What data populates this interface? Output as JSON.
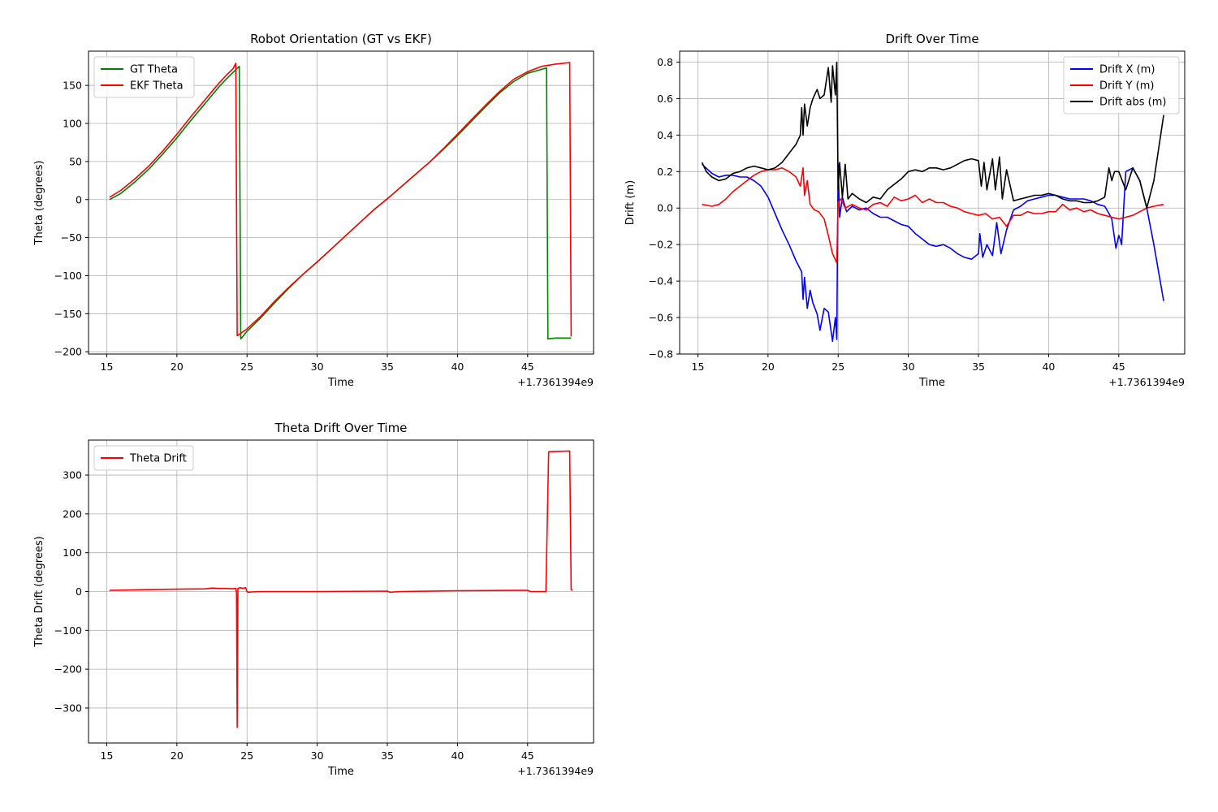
{
  "chart_data": [
    {
      "type": "line",
      "title": "Robot Orientation (GT vs EKF)",
      "xlabel": "Time",
      "ylabel": "Theta (degrees)",
      "offset_text": "+1.7361394e9",
      "xlim": [
        13.7,
        49.7
      ],
      "ylim": [
        -203,
        195
      ],
      "xticks": [
        15,
        20,
        25,
        30,
        35,
        40,
        45
      ],
      "yticks": [
        -200,
        -150,
        -100,
        -50,
        0,
        50,
        100,
        150
      ],
      "grid": true,
      "legend": "upper-left",
      "series": [
        {
          "name": "GT Theta",
          "color": "#008000",
          "x": [
            15.2,
            16,
            17,
            18,
            19,
            20,
            21,
            22,
            22.5,
            23,
            23.5,
            24,
            24.45,
            24.55,
            24.7,
            25,
            26,
            27,
            28,
            29,
            30,
            31,
            32,
            33,
            34,
            35,
            36,
            37,
            38,
            39,
            40,
            41,
            42,
            43,
            44,
            45,
            45.8,
            46.35,
            46.45,
            47,
            48.0,
            48.1
          ],
          "y": [
            0,
            8,
            23,
            40,
            60,
            81,
            104,
            126,
            137,
            148,
            158,
            167,
            175,
            -183,
            -180,
            -173,
            -155,
            -135,
            -116,
            -98,
            -82,
            -65,
            -48,
            -31,
            -14,
            1,
            17,
            33,
            49,
            66,
            84,
            103,
            122,
            140,
            155,
            166,
            170,
            173,
            -183,
            -182,
            -182,
            -182
          ]
        },
        {
          "name": "EKF Theta",
          "color": "#ff0000",
          "x": [
            15.2,
            16,
            17,
            18,
            19,
            20,
            21,
            22,
            22.5,
            23,
            23.5,
            24,
            24.2,
            24.3,
            24.6,
            25,
            26,
            27,
            28,
            29,
            30,
            31,
            32,
            33,
            34,
            35,
            36,
            37,
            38,
            39,
            40,
            41,
            42,
            43,
            44,
            45,
            46,
            47,
            48.0,
            48.1
          ],
          "y": [
            3,
            12,
            27,
            44,
            64,
            86,
            109,
            131,
            142,
            153,
            163,
            172,
            179,
            -179,
            -175,
            -170,
            -153,
            -133,
            -115,
            -98,
            -82,
            -65,
            -48,
            -31,
            -14,
            1,
            17,
            33,
            49,
            67,
            86,
            105,
            124,
            142,
            158,
            168,
            175,
            178,
            180,
            -180
          ]
        }
      ]
    },
    {
      "type": "line",
      "title": "Drift Over Time",
      "xlabel": "Time",
      "ylabel": "Drift (m)",
      "offset_text": "+1.7361394e9",
      "xlim": [
        13.7,
        49.7
      ],
      "ylim": [
        -0.8,
        0.86
      ],
      "xticks": [
        15,
        20,
        25,
        30,
        35,
        40,
        45
      ],
      "yticks": [
        -0.8,
        -0.6,
        -0.4,
        -0.2,
        0.0,
        0.2,
        0.4,
        0.6,
        0.8
      ],
      "grid": true,
      "legend": "upper-right",
      "series": [
        {
          "name": "Drift X (m)",
          "color": "#0000ff",
          "x": [
            15.3,
            16,
            16.5,
            17,
            17.5,
            18,
            18.5,
            19,
            19.5,
            20,
            20.5,
            21,
            21.5,
            22,
            22.4,
            22.5,
            22.6,
            22.8,
            23,
            23.2,
            23.5,
            23.7,
            24,
            24.3,
            24.6,
            24.8,
            24.9,
            25.0,
            25.1,
            25.3,
            25.6,
            26,
            26.5,
            27,
            27.5,
            28,
            28.5,
            29,
            29.5,
            30,
            30.5,
            31,
            31.5,
            32,
            32.5,
            33,
            33.5,
            34,
            34.5,
            35,
            35.1,
            35.3,
            35.6,
            36,
            36.3,
            36.6,
            37,
            37.5,
            38,
            38.5,
            39,
            39.5,
            40,
            40.5,
            41,
            41.5,
            42,
            42.5,
            43,
            43.5,
            44,
            44.3,
            44.5,
            44.8,
            45,
            45.1,
            45.2,
            45.5,
            46,
            46.5,
            47,
            47.5,
            48.2
          ],
          "y": [
            0.24,
            0.19,
            0.17,
            0.18,
            0.18,
            0.17,
            0.17,
            0.15,
            0.12,
            0.06,
            -0.03,
            -0.12,
            -0.2,
            -0.29,
            -0.35,
            -0.5,
            -0.38,
            -0.55,
            -0.45,
            -0.52,
            -0.58,
            -0.67,
            -0.55,
            -0.57,
            -0.73,
            -0.6,
            -0.72,
            0.24,
            -0.05,
            0.06,
            -0.02,
            0.01,
            -0.01,
            0.0,
            -0.03,
            -0.05,
            -0.05,
            -0.07,
            -0.09,
            -0.1,
            -0.14,
            -0.17,
            -0.2,
            -0.21,
            -0.2,
            -0.22,
            -0.25,
            -0.27,
            -0.28,
            -0.25,
            -0.14,
            -0.27,
            -0.2,
            -0.26,
            -0.08,
            -0.25,
            -0.12,
            -0.01,
            0.01,
            0.04,
            0.05,
            0.06,
            0.07,
            0.07,
            0.06,
            0.05,
            0.05,
            0.05,
            0.04,
            0.02,
            0.01,
            -0.03,
            -0.06,
            -0.22,
            -0.15,
            -0.17,
            -0.2,
            0.2,
            0.22,
            0.15,
            0.0,
            -0.2,
            -0.51
          ]
        },
        {
          "name": "Drift Y (m)",
          "color": "#ff0000",
          "x": [
            15.3,
            16,
            16.5,
            17,
            17.5,
            18,
            18.5,
            19,
            19.5,
            20,
            20.5,
            21,
            21.5,
            22,
            22.3,
            22.5,
            22.6,
            22.8,
            23,
            23.3,
            23.6,
            24,
            24.3,
            24.6,
            24.9,
            25.0,
            25.2,
            25.5,
            26,
            26.5,
            27,
            27.5,
            28,
            28.5,
            29,
            29.5,
            30,
            30.5,
            31,
            31.5,
            32,
            32.5,
            33,
            33.5,
            34,
            34.5,
            35,
            35.5,
            36,
            36.5,
            37,
            37.5,
            38,
            38.5,
            39,
            39.5,
            40,
            40.5,
            41,
            41.5,
            42,
            42.5,
            43,
            43.5,
            44,
            44.5,
            45,
            45.5,
            46,
            46.5,
            47,
            47.5,
            48.2
          ],
          "y": [
            0.02,
            0.01,
            0.02,
            0.05,
            0.09,
            0.12,
            0.15,
            0.18,
            0.2,
            0.21,
            0.21,
            0.22,
            0.2,
            0.17,
            0.12,
            0.22,
            0.07,
            0.15,
            0.02,
            -0.01,
            -0.02,
            -0.06,
            -0.15,
            -0.25,
            -0.3,
            0.03,
            0.05,
            0.0,
            0.02,
            0.0,
            -0.01,
            0.02,
            0.03,
            0.01,
            0.06,
            0.04,
            0.05,
            0.07,
            0.03,
            0.05,
            0.03,
            0.03,
            0.01,
            0.0,
            -0.02,
            -0.03,
            -0.04,
            -0.03,
            -0.06,
            -0.05,
            -0.1,
            -0.04,
            -0.04,
            -0.02,
            -0.03,
            -0.03,
            -0.02,
            -0.02,
            0.02,
            -0.01,
            0.0,
            -0.02,
            -0.01,
            -0.03,
            -0.04,
            -0.05,
            -0.06,
            -0.05,
            -0.04,
            -0.02,
            0.0,
            0.01,
            0.02
          ]
        },
        {
          "name": "Drift abs (m)",
          "color": "#000000",
          "x": [
            15.3,
            15.6,
            16,
            16.5,
            17,
            17.5,
            18,
            18.5,
            19,
            19.5,
            20,
            20.5,
            21,
            21.5,
            22,
            22.3,
            22.4,
            22.5,
            22.6,
            22.8,
            23,
            23.2,
            23.5,
            23.7,
            24,
            24.3,
            24.5,
            24.6,
            24.8,
            24.9,
            25.0,
            25.1,
            25.3,
            25.5,
            25.7,
            26,
            26.5,
            27,
            27.5,
            28,
            28.5,
            29,
            29.5,
            30,
            30.5,
            31,
            31.5,
            32,
            32.5,
            33,
            33.5,
            34,
            34.5,
            35,
            35.2,
            35.4,
            35.6,
            36,
            36.2,
            36.5,
            36.7,
            37,
            37.5,
            38,
            38.5,
            39,
            39.5,
            40,
            40.5,
            41,
            41.5,
            42,
            42.5,
            43,
            43.5,
            44,
            44.3,
            44.5,
            44.7,
            45,
            45.5,
            46,
            46.5,
            47,
            47.5,
            48.2
          ],
          "y": [
            0.25,
            0.2,
            0.17,
            0.15,
            0.16,
            0.19,
            0.2,
            0.22,
            0.23,
            0.22,
            0.21,
            0.22,
            0.25,
            0.3,
            0.35,
            0.4,
            0.55,
            0.4,
            0.57,
            0.45,
            0.55,
            0.6,
            0.65,
            0.6,
            0.62,
            0.77,
            0.58,
            0.78,
            0.62,
            0.8,
            0.1,
            0.25,
            0.06,
            0.24,
            0.05,
            0.08,
            0.05,
            0.03,
            0.06,
            0.05,
            0.1,
            0.13,
            0.16,
            0.2,
            0.21,
            0.2,
            0.22,
            0.22,
            0.21,
            0.22,
            0.24,
            0.26,
            0.27,
            0.26,
            0.12,
            0.25,
            0.1,
            0.27,
            0.1,
            0.28,
            0.05,
            0.21,
            0.04,
            0.05,
            0.06,
            0.07,
            0.07,
            0.08,
            0.07,
            0.05,
            0.04,
            0.04,
            0.03,
            0.03,
            0.04,
            0.06,
            0.22,
            0.15,
            0.2,
            0.2,
            0.1,
            0.22,
            0.15,
            0.0,
            0.15,
            0.51
          ]
        }
      ]
    },
    {
      "type": "line",
      "title": "Theta Drift Over Time",
      "xlabel": "Time",
      "ylabel": "Theta Drift (degrees)",
      "offset_text": "+1.7361394e9",
      "xlim": [
        13.7,
        49.7
      ],
      "ylim": [
        -390,
        390
      ],
      "xticks": [
        15,
        20,
        25,
        30,
        35,
        40,
        45
      ],
      "yticks": [
        -300,
        -200,
        -100,
        0,
        100,
        200,
        300
      ],
      "grid": true,
      "legend": "upper-left",
      "series": [
        {
          "name": "Theta Drift",
          "color": "#ff0000",
          "x": [
            15.2,
            18,
            20,
            22,
            22.5,
            23,
            23.5,
            24,
            24.1,
            24.2,
            24.25,
            24.3,
            24.35,
            24.5,
            24.7,
            24.9,
            25.0,
            25.1,
            25.3,
            26,
            27,
            30,
            35,
            35.2,
            35.5,
            36,
            40,
            44,
            45,
            45.2,
            46.3,
            46.4,
            46.5,
            48.0,
            48.1,
            48.2
          ],
          "y": [
            3,
            5,
            6,
            7,
            9,
            8,
            8,
            7,
            8,
            8,
            -5,
            -350,
            8,
            10,
            8,
            10,
            0,
            -2,
            -1,
            0,
            0,
            0,
            1,
            -2,
            -1,
            0,
            2,
            3,
            3,
            0,
            0,
            180,
            360,
            362,
            5,
            3
          ]
        }
      ]
    }
  ]
}
